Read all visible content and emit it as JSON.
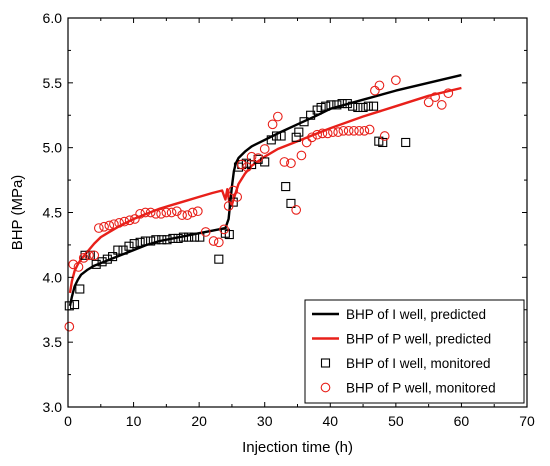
{
  "chart_data": {
    "type": "line",
    "xlabel": "Injection time (h)",
    "ylabel": "BHP (MPa)",
    "xlim": [
      0,
      70
    ],
    "ylim": [
      3.0,
      6.0
    ],
    "xticks": [
      "0",
      "10",
      "20",
      "30",
      "40",
      "50",
      "60",
      "70"
    ],
    "yticks": [
      "3.0",
      "3.5",
      "4.0",
      "4.5",
      "5.0",
      "5.5",
      "6.0"
    ],
    "grid": false,
    "legend_position": "bottom-right",
    "colors": {
      "I_well": "#000000",
      "P_well": "#e8201a"
    },
    "series": [
      {
        "name": "BHP of I well, predicted",
        "kind": "line",
        "color": "#000000",
        "x": [
          0.3,
          0.6,
          1.0,
          1.5,
          2.0,
          3.0,
          4.0,
          5.0,
          6.0,
          8.0,
          10.0,
          12.0,
          14.0,
          16.0,
          18.0,
          20.0,
          22.0,
          24.0,
          24.5,
          25.0,
          25.3,
          25.6,
          26.0,
          27.0,
          28.0,
          30.0,
          32.0,
          35.0,
          38.0,
          40.0,
          45.0,
          50.0,
          55.0,
          60.0
        ],
        "y": [
          3.78,
          3.85,
          3.93,
          3.98,
          4.02,
          4.06,
          4.09,
          4.11,
          4.13,
          4.17,
          4.21,
          4.25,
          4.28,
          4.3,
          4.32,
          4.34,
          4.36,
          4.38,
          4.45,
          4.7,
          4.82,
          4.88,
          4.92,
          4.97,
          5.01,
          5.06,
          5.11,
          5.18,
          5.25,
          5.3,
          5.37,
          5.44,
          5.5,
          5.56
        ]
      },
      {
        "name": "BHP of P well, predicted",
        "kind": "line",
        "color": "#e8201a",
        "x": [
          0.3,
          0.6,
          1.0,
          1.5,
          2.0,
          3.0,
          4.0,
          5.0,
          6.0,
          8.0,
          10.0,
          12.0,
          14.0,
          16.0,
          18.0,
          20.0,
          22.0,
          23.5,
          24.0,
          24.3,
          24.6,
          25.0,
          25.5,
          26.0,
          27.0,
          28.0,
          30.0,
          32.0,
          35.0,
          38.0,
          40.0,
          45.0,
          50.0,
          55.0,
          60.0
        ],
        "y": [
          3.88,
          3.97,
          4.05,
          4.1,
          4.14,
          4.2,
          4.26,
          4.31,
          4.34,
          4.4,
          4.45,
          4.49,
          4.53,
          4.56,
          4.59,
          4.62,
          4.65,
          4.67,
          4.6,
          4.68,
          4.58,
          4.56,
          4.64,
          4.72,
          4.8,
          4.86,
          4.93,
          4.99,
          5.05,
          5.11,
          5.15,
          5.24,
          5.32,
          5.4,
          5.46
        ]
      },
      {
        "name": "BHP of I well, monitored",
        "kind": "scatter",
        "marker": "square",
        "color": "#000000",
        "x": [
          0.2,
          1.0,
          1.8,
          2.6,
          3.4,
          4.3,
          5.2,
          6.0,
          6.8,
          7.6,
          8.4,
          9.3,
          10.1,
          11.0,
          11.8,
          12.6,
          13.4,
          14.3,
          15.1,
          16.0,
          16.8,
          17.6,
          18.4,
          19.3,
          20.1,
          23.0,
          24.0,
          24.6,
          25.2,
          26.0,
          26.5,
          27.2,
          28.0,
          29.0,
          30.0,
          31.0,
          31.8,
          32.5,
          33.2,
          34.0,
          34.8,
          35.2,
          36.0,
          37.0,
          38.0,
          38.6,
          39.3,
          40.1,
          41.0,
          41.8,
          42.6,
          43.4,
          44.2,
          45.0,
          45.8,
          46.6,
          47.4,
          48.0,
          51.5
        ],
        "y": [
          3.78,
          3.79,
          3.91,
          4.17,
          4.17,
          4.1,
          4.12,
          4.14,
          4.16,
          4.21,
          4.21,
          4.24,
          4.26,
          4.27,
          4.28,
          4.28,
          4.29,
          4.29,
          4.29,
          4.3,
          4.3,
          4.31,
          4.31,
          4.31,
          4.31,
          4.14,
          4.34,
          4.33,
          4.58,
          4.85,
          4.87,
          4.88,
          4.87,
          4.91,
          4.89,
          5.06,
          5.09,
          5.09,
          4.7,
          4.57,
          5.08,
          5.12,
          5.2,
          5.25,
          5.29,
          5.31,
          5.32,
          5.33,
          5.33,
          5.34,
          5.34,
          5.32,
          5.31,
          5.31,
          5.32,
          5.32,
          5.05,
          5.04,
          5.04
        ]
      },
      {
        "name": "BHP of P well, monitored",
        "kind": "scatter",
        "marker": "circle",
        "color": "#e8201a",
        "x": [
          0.2,
          0.8,
          1.6,
          2.4,
          3.2,
          4.0,
          4.7,
          5.5,
          6.3,
          7.0,
          7.8,
          8.6,
          9.4,
          10.2,
          11.0,
          11.8,
          12.6,
          13.4,
          14.2,
          15.0,
          15.8,
          16.6,
          17.4,
          18.2,
          19.0,
          19.8,
          21.0,
          22.2,
          23.0,
          23.8,
          24.5,
          25.2,
          25.8,
          26.5,
          27.3,
          28.0,
          29.0,
          30.0,
          31.2,
          32.0,
          33.0,
          34.0,
          34.8,
          35.6,
          36.4,
          37.2,
          38.0,
          38.8,
          39.6,
          40.4,
          41.2,
          42.0,
          42.8,
          43.6,
          44.4,
          45.2,
          46.0,
          46.8,
          47.5,
          48.3,
          50.0,
          55.0,
          56.0,
          57.0,
          58.0
        ],
        "y": [
          3.62,
          4.1,
          4.08,
          4.15,
          4.17,
          4.17,
          4.38,
          4.39,
          4.4,
          4.41,
          4.42,
          4.43,
          4.44,
          4.45,
          4.49,
          4.5,
          4.5,
          4.49,
          4.49,
          4.5,
          4.5,
          4.51,
          4.48,
          4.48,
          4.5,
          4.51,
          4.35,
          4.28,
          4.27,
          4.37,
          4.55,
          4.67,
          4.62,
          4.87,
          4.85,
          4.93,
          4.92,
          4.99,
          5.18,
          5.24,
          4.89,
          4.88,
          4.52,
          4.94,
          5.04,
          5.08,
          5.1,
          5.11,
          5.11,
          5.12,
          5.12,
          5.13,
          5.13,
          5.13,
          5.13,
          5.13,
          5.14,
          5.44,
          5.48,
          5.09,
          5.52,
          5.35,
          5.39,
          5.33,
          5.42
        ]
      }
    ]
  }
}
